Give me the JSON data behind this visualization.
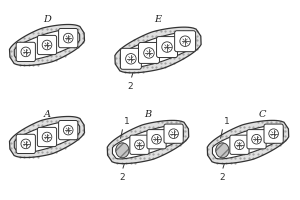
{
  "panels": [
    {
      "label": "A",
      "col": 0,
      "row": 0,
      "ann1": false,
      "ann2": false,
      "num_cells": 3,
      "insert": false,
      "clip_right": false
    },
    {
      "label": "B",
      "col": 1,
      "row": 0,
      "ann1": true,
      "ann2": true,
      "num_cells": 4,
      "insert": true,
      "insert_idx": 0,
      "clip_right": false
    },
    {
      "label": "C",
      "col": 2,
      "row": 0,
      "ann1": true,
      "ann2": true,
      "num_cells": 4,
      "insert": true,
      "insert_idx": 0,
      "clip_right": true
    },
    {
      "label": "D",
      "col": 0,
      "row": 1,
      "ann1": false,
      "ann2": false,
      "num_cells": 3,
      "insert": false,
      "clip_right": false
    },
    {
      "label": "E",
      "col": 1,
      "row": 1,
      "ann1": false,
      "ann2": true,
      "num_cells": 4,
      "insert": false,
      "clip_right": false
    }
  ],
  "bg_color": "#ffffff",
  "line_color": "#333333",
  "stipple_color": "#bbbbbb",
  "dot_color": "#999999",
  "insert_color": "#aaaaaa",
  "label_font_size": 7
}
